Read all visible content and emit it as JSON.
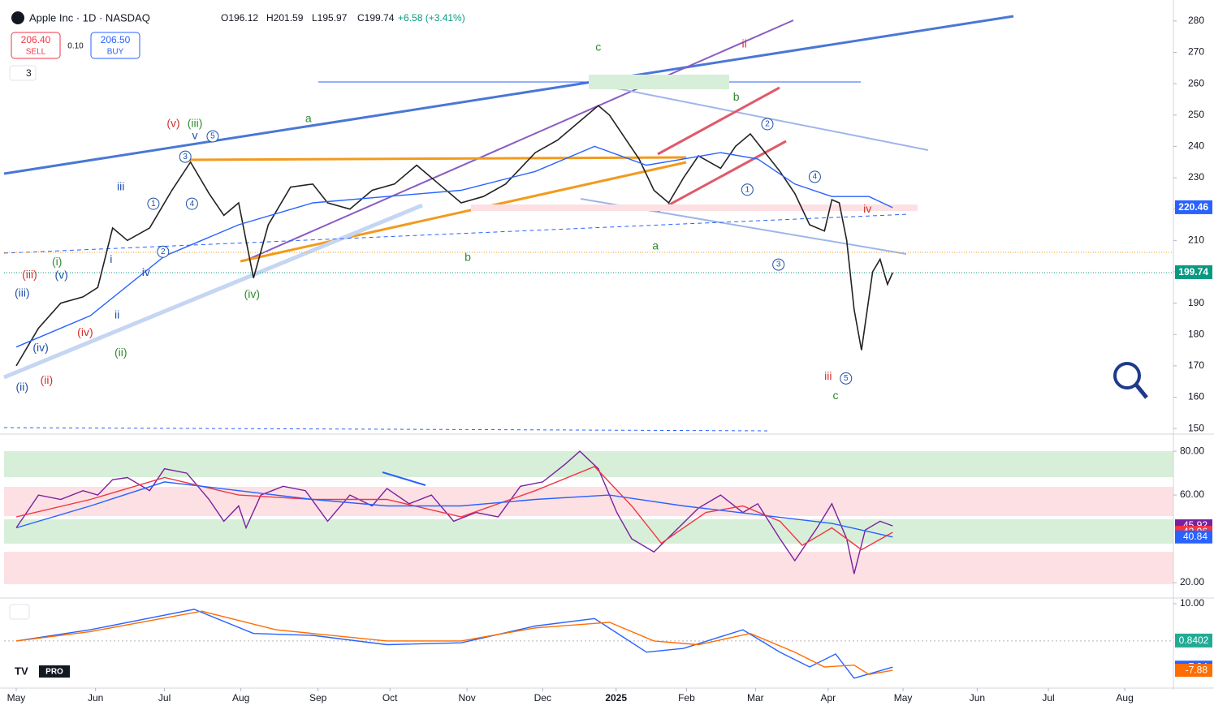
{
  "header": {
    "symbol": "Apple Inc · 1D · NASDAQ",
    "ohlc": [
      "O196.12",
      "H201.59",
      "L195.97",
      "C199.74"
    ],
    "change": "+6.58 (+3.41%)",
    "sell_price": "206.40",
    "sell": "SELL",
    "spread": "0.10",
    "buy_price": "206.50",
    "buy": "BUY",
    "indicators": "3",
    "logo": "PRO"
  },
  "chart_data": [
    {
      "type": "line",
      "xlim": [
        -0.164,
        15.606
      ],
      "ylim": [
        149,
        285.4
      ],
      "yticks": [
        150,
        160,
        170,
        180,
        190,
        200,
        210,
        220,
        230,
        240,
        250,
        260,
        270,
        280
      ],
      "series": [
        {
          "color": "#222",
          "x": [
            0,
            0.3,
            0.6,
            0.9,
            1.1,
            1.3,
            1.5,
            1.8,
            2.1,
            2.35,
            2.6,
            2.8,
            3.0,
            3.1,
            3.2,
            3.4,
            3.7,
            4.0,
            4.2,
            4.5,
            4.8,
            5.1,
            5.4,
            5.7,
            6.0,
            6.3,
            6.6,
            7.0,
            7.3,
            7.6,
            7.85,
            8.0,
            8.2,
            8.4,
            8.6,
            8.8,
            9.0,
            9.2,
            9.5,
            9.7,
            9.9,
            10.1,
            10.3,
            10.5,
            10.7,
            10.9,
            11.0,
            11.1,
            11.2,
            11.3,
            11.4,
            11.55,
            11.65,
            11.75,
            11.82
          ],
          "values": [
            170,
            182,
            190,
            192,
            195,
            214,
            210,
            214,
            226,
            235,
            225,
            218,
            222,
            210,
            198,
            215,
            227,
            228,
            222,
            220,
            226,
            228,
            234,
            228,
            222,
            224,
            228,
            238,
            242,
            248,
            253,
            250,
            243,
            236,
            226,
            222,
            230,
            237,
            233,
            240,
            244,
            238,
            232,
            225,
            215,
            213,
            223,
            222,
            210,
            188,
            175,
            200,
            204,
            196,
            199.74
          ]
        },
        {
          "color": "#2962ff",
          "x": [
            0,
            1,
            2,
            3,
            4,
            5,
            6,
            7,
            7.8,
            8.5,
            9,
            9.5,
            10,
            10.5,
            11,
            11.5,
            11.82
          ],
          "values": [
            176,
            186,
            205,
            215,
            222,
            224,
            226,
            232,
            240,
            234,
            236,
            238,
            236,
            228,
            224,
            224,
            220.46
          ]
        }
      ],
      "price_labels": [
        {
          "value": 220.46,
          "color": "#2962ff"
        },
        {
          "value": 199.74,
          "color": "#089981"
        }
      ],
      "annotations": [
        {
          "text": "c",
          "x": 7.85,
          "y": 271.5,
          "color": "#2e8b2e"
        },
        {
          "text": "ii",
          "x": 9.82,
          "y": 272.5,
          "color": "#d32f2f"
        },
        {
          "text": "a",
          "x": 3.94,
          "y": 248.7,
          "color": "#2e8b2e"
        },
        {
          "text": "b",
          "x": 6.09,
          "y": 204.4,
          "color": "#2e8b2e"
        },
        {
          "text": "b",
          "x": 9.71,
          "y": 255.6,
          "color": "#2e8b2e"
        },
        {
          "text": "a",
          "x": 8.62,
          "y": 208,
          "color": "#2e8b2e"
        },
        {
          "text": "iv",
          "x": 11.48,
          "y": 219.9,
          "color": "#d32f2f"
        },
        {
          "text": "iii",
          "x": 10.95,
          "y": 166.5,
          "color": "#d32f2f"
        },
        {
          "text": "c",
          "x": 11.05,
          "y": 160.3,
          "color": "#2e8b2e"
        },
        {
          "text": "(v)",
          "x": 2.12,
          "y": 247.1,
          "color": "#d32f2f"
        },
        {
          "text": "(iii)",
          "x": 2.41,
          "y": 247.1,
          "color": "#2e8b2e"
        },
        {
          "text": "v",
          "x": 2.41,
          "y": 243.2,
          "color": "#1e4fa8"
        },
        {
          "text": "iii",
          "x": 1.41,
          "y": 226.9,
          "color": "#1e4fa8"
        },
        {
          "text": "i",
          "x": 1.28,
          "y": 203.8,
          "color": "#1e4fa8"
        },
        {
          "text": "ii",
          "x": 1.36,
          "y": 186,
          "color": "#1e4fa8"
        },
        {
          "text": "iv",
          "x": 1.75,
          "y": 199.7,
          "color": "#1e4fa8"
        },
        {
          "text": "(i)",
          "x": 0.55,
          "y": 203,
          "color": "#2e8b2e"
        },
        {
          "text": "(v)",
          "x": 0.61,
          "y": 198.7,
          "color": "#1e4fa8"
        },
        {
          "text": "(iii)",
          "x": 0.18,
          "y": 198.9,
          "color": "#d32f2f"
        },
        {
          "text": "(iii)",
          "x": 0.08,
          "y": 193,
          "color": "#1e4fa8"
        },
        {
          "text": "(iv)",
          "x": 0.93,
          "y": 180.5,
          "color": "#d32f2f"
        },
        {
          "text": "(iv)",
          "x": 0.33,
          "y": 175.6,
          "color": "#1e4fa8"
        },
        {
          "text": "(ii)",
          "x": 0.41,
          "y": 165.2,
          "color": "#d32f2f"
        },
        {
          "text": "(ii)",
          "x": 0.08,
          "y": 163,
          "color": "#1e4fa8"
        },
        {
          "text": "(ii)",
          "x": 1.41,
          "y": 174,
          "color": "#2e8b2e"
        },
        {
          "text": "(iv)",
          "x": 3.18,
          "y": 192.7,
          "color": "#2e8b2e"
        },
        {
          "text": "5",
          "x": 2.65,
          "y": 243.2,
          "color": "#1e4fa8",
          "circled": true
        },
        {
          "text": "3",
          "x": 2.28,
          "y": 236.7,
          "color": "#1e4fa8",
          "circled": true
        },
        {
          "text": "1",
          "x": 1.85,
          "y": 221.7,
          "color": "#1e4fa8",
          "circled": true
        },
        {
          "text": "4",
          "x": 2.37,
          "y": 221.7,
          "color": "#1e4fa8",
          "circled": true
        },
        {
          "text": "2",
          "x": 1.98,
          "y": 206.4,
          "color": "#1e4fa8",
          "circled": true
        },
        {
          "text": "2",
          "x": 10.13,
          "y": 247.1,
          "color": "#1e4fa8",
          "circled": true
        },
        {
          "text": "4",
          "x": 10.77,
          "y": 230.3,
          "color": "#1e4fa8",
          "circled": true
        },
        {
          "text": "1",
          "x": 9.86,
          "y": 226.2,
          "color": "#1e4fa8",
          "circled": true
        },
        {
          "text": "3",
          "x": 10.28,
          "y": 202.3,
          "color": "#1e4fa8",
          "circled": true
        },
        {
          "text": "5",
          "x": 11.19,
          "y": 166,
          "color": "#1e4fa8",
          "circled": true
        }
      ]
    },
    {
      "type": "line",
      "xlim": [
        -0.164,
        15.606
      ],
      "ylim": [
        13.7,
        86.7
      ],
      "yticks": [
        {
          "value": 20,
          "label": "20.00"
        },
        {
          "value": 60,
          "label": "60.00"
        },
        {
          "value": 80,
          "label": "80.00"
        }
      ],
      "series": [
        {
          "color": "#7b1fa2",
          "x": [
            0,
            0.3,
            0.6,
            0.9,
            1.1,
            1.3,
            1.5,
            1.8,
            2.0,
            2.3,
            2.6,
            2.8,
            3.0,
            3.1,
            3.3,
            3.6,
            3.9,
            4.2,
            4.5,
            4.8,
            5.0,
            5.3,
            5.6,
            5.9,
            6.2,
            6.5,
            6.8,
            7.1,
            7.4,
            7.6,
            7.85,
            8.1,
            8.3,
            8.6,
            8.9,
            9.2,
            9.5,
            9.8,
            10.0,
            10.3,
            10.5,
            10.8,
            11.0,
            11.2,
            11.3,
            11.45,
            11.65,
            11.82
          ],
          "values": [
            45,
            60,
            58,
            62,
            60,
            67,
            68,
            62,
            72,
            70,
            58,
            48,
            55,
            45,
            60,
            64,
            62,
            48,
            60,
            55,
            63,
            56,
            60,
            48,
            52,
            50,
            64,
            66,
            74,
            80,
            72,
            52,
            40,
            34,
            44,
            54,
            60,
            52,
            56,
            40,
            30,
            45,
            56,
            40,
            24,
            44,
            48,
            45.92
          ]
        },
        {
          "color": "#f23645",
          "x": [
            0,
            1,
            2,
            3,
            4,
            5,
            6,
            7,
            7.8,
            8.3,
            8.7,
            9.3,
            9.8,
            10.3,
            10.6,
            11,
            11.4,
            11.82
          ],
          "values": [
            50,
            58,
            68,
            60,
            58,
            58,
            50,
            62,
            73,
            55,
            38,
            52,
            55,
            48,
            37,
            45,
            35,
            42.96
          ]
        },
        {
          "color": "#2962ff",
          "x": [
            0,
            1,
            2,
            3,
            4,
            5,
            6,
            7,
            8,
            9,
            10,
            11,
            11.82
          ],
          "values": [
            45,
            55,
            66,
            62,
            58,
            55,
            55,
            58,
            60,
            55,
            51,
            47,
            40.84
          ]
        }
      ]
    },
    {
      "type": "line",
      "xlim": [
        -0.164,
        15.606
      ],
      "ylim": [
        -12,
        11.3
      ],
      "yticks": [
        {
          "value": 10,
          "label": "10.00"
        }
      ],
      "xticks": [
        {
          "value": 0,
          "label": "May"
        },
        {
          "value": 1.07,
          "label": "Jun"
        },
        {
          "value": 2.0,
          "label": "Jul"
        },
        {
          "value": 3.03,
          "label": "Aug"
        },
        {
          "value": 4.07,
          "label": "Sep"
        },
        {
          "value": 5.04,
          "label": "Oct"
        },
        {
          "value": 6.08,
          "label": "Nov"
        },
        {
          "value": 7.1,
          "label": "Dec"
        },
        {
          "value": 8.09,
          "label": "2025"
        },
        {
          "value": 9.04,
          "label": "Feb"
        },
        {
          "value": 9.97,
          "label": "Mar"
        },
        {
          "value": 10.95,
          "label": "Apr"
        },
        {
          "value": 11.96,
          "label": "May"
        },
        {
          "value": 12.96,
          "label": "Jun"
        },
        {
          "value": 13.92,
          "label": "Jul"
        },
        {
          "value": 14.95,
          "label": "Aug"
        }
      ],
      "series": [
        {
          "color": "#2962ff",
          "x": [
            0,
            1,
            2.4,
            3.2,
            4,
            5,
            6,
            7,
            7.8,
            8.5,
            9,
            9.8,
            10.3,
            10.7,
            11.05,
            11.3,
            11.82
          ],
          "values": [
            0,
            3,
            8.5,
            2,
            1.5,
            -1,
            -0.5,
            4,
            6,
            -3,
            -2,
            3,
            -3,
            -7,
            -3.5,
            -10,
            -7.04
          ]
        },
        {
          "color": "#ff6d00",
          "x": [
            0,
            1,
            2.5,
            3.5,
            5,
            6,
            7,
            8,
            8.6,
            9.2,
            9.9,
            10.5,
            10.9,
            11.3,
            11.5,
            11.82
          ],
          "values": [
            0,
            2.5,
            8,
            3,
            0,
            0,
            3.5,
            5,
            0,
            -1,
            2,
            -3,
            -7,
            -6.5,
            -9,
            -7.88
          ]
        }
      ],
      "zero_value": 0.8402
    }
  ]
}
